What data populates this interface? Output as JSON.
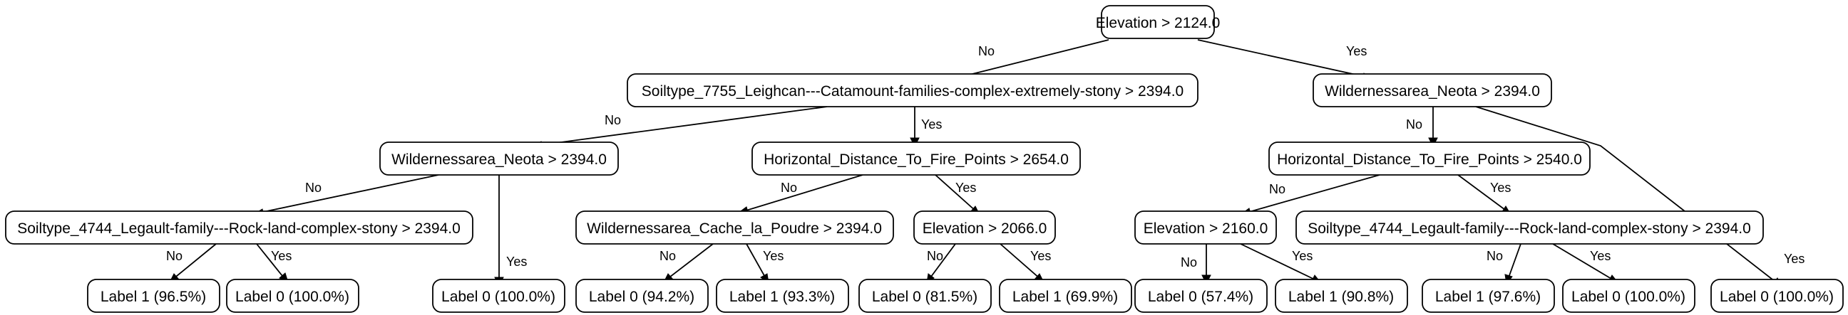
{
  "nodes": {
    "root": "Elevation > 2124.0",
    "n1": "Soiltype_7755_Leighcan---Catamount-families-complex-extremely-stony > 2394.0",
    "n2": "Wildernessarea_Neota > 2394.0",
    "n3": "Wildernessarea_Neota > 2394.0",
    "n4": "Horizontal_Distance_To_Fire_Points > 2654.0",
    "n5": "Horizontal_Distance_To_Fire_Points > 2540.0",
    "n6": "Soiltype_4744_Legault-family---Rock-land-complex-stony > 2394.0",
    "n7": "Wildernessarea_Cache_la_Poudre > 2394.0",
    "n8": "Elevation > 2066.0",
    "n9": "Elevation > 2160.0",
    "n10": "Soiltype_4744_Legault-family---Rock-land-complex-stony > 2394.0",
    "l1": "Label 1 (96.5%)",
    "l2": "Label 0 (100.0%)",
    "l3": "Label 0 (100.0%)",
    "l4": "Label 0 (94.2%)",
    "l5": "Label 1 (93.3%)",
    "l6": "Label 0 (81.5%)",
    "l7": "Label 1 (69.9%)",
    "l8": "Label 0 (57.4%)",
    "l9": "Label 1 (90.8%)",
    "l10": "Label 1 (97.6%)",
    "l11": "Label 0 (100.0%)",
    "l12": "Label 0 (100.0%)"
  },
  "edge_labels": {
    "no": "No",
    "yes": "Yes"
  }
}
